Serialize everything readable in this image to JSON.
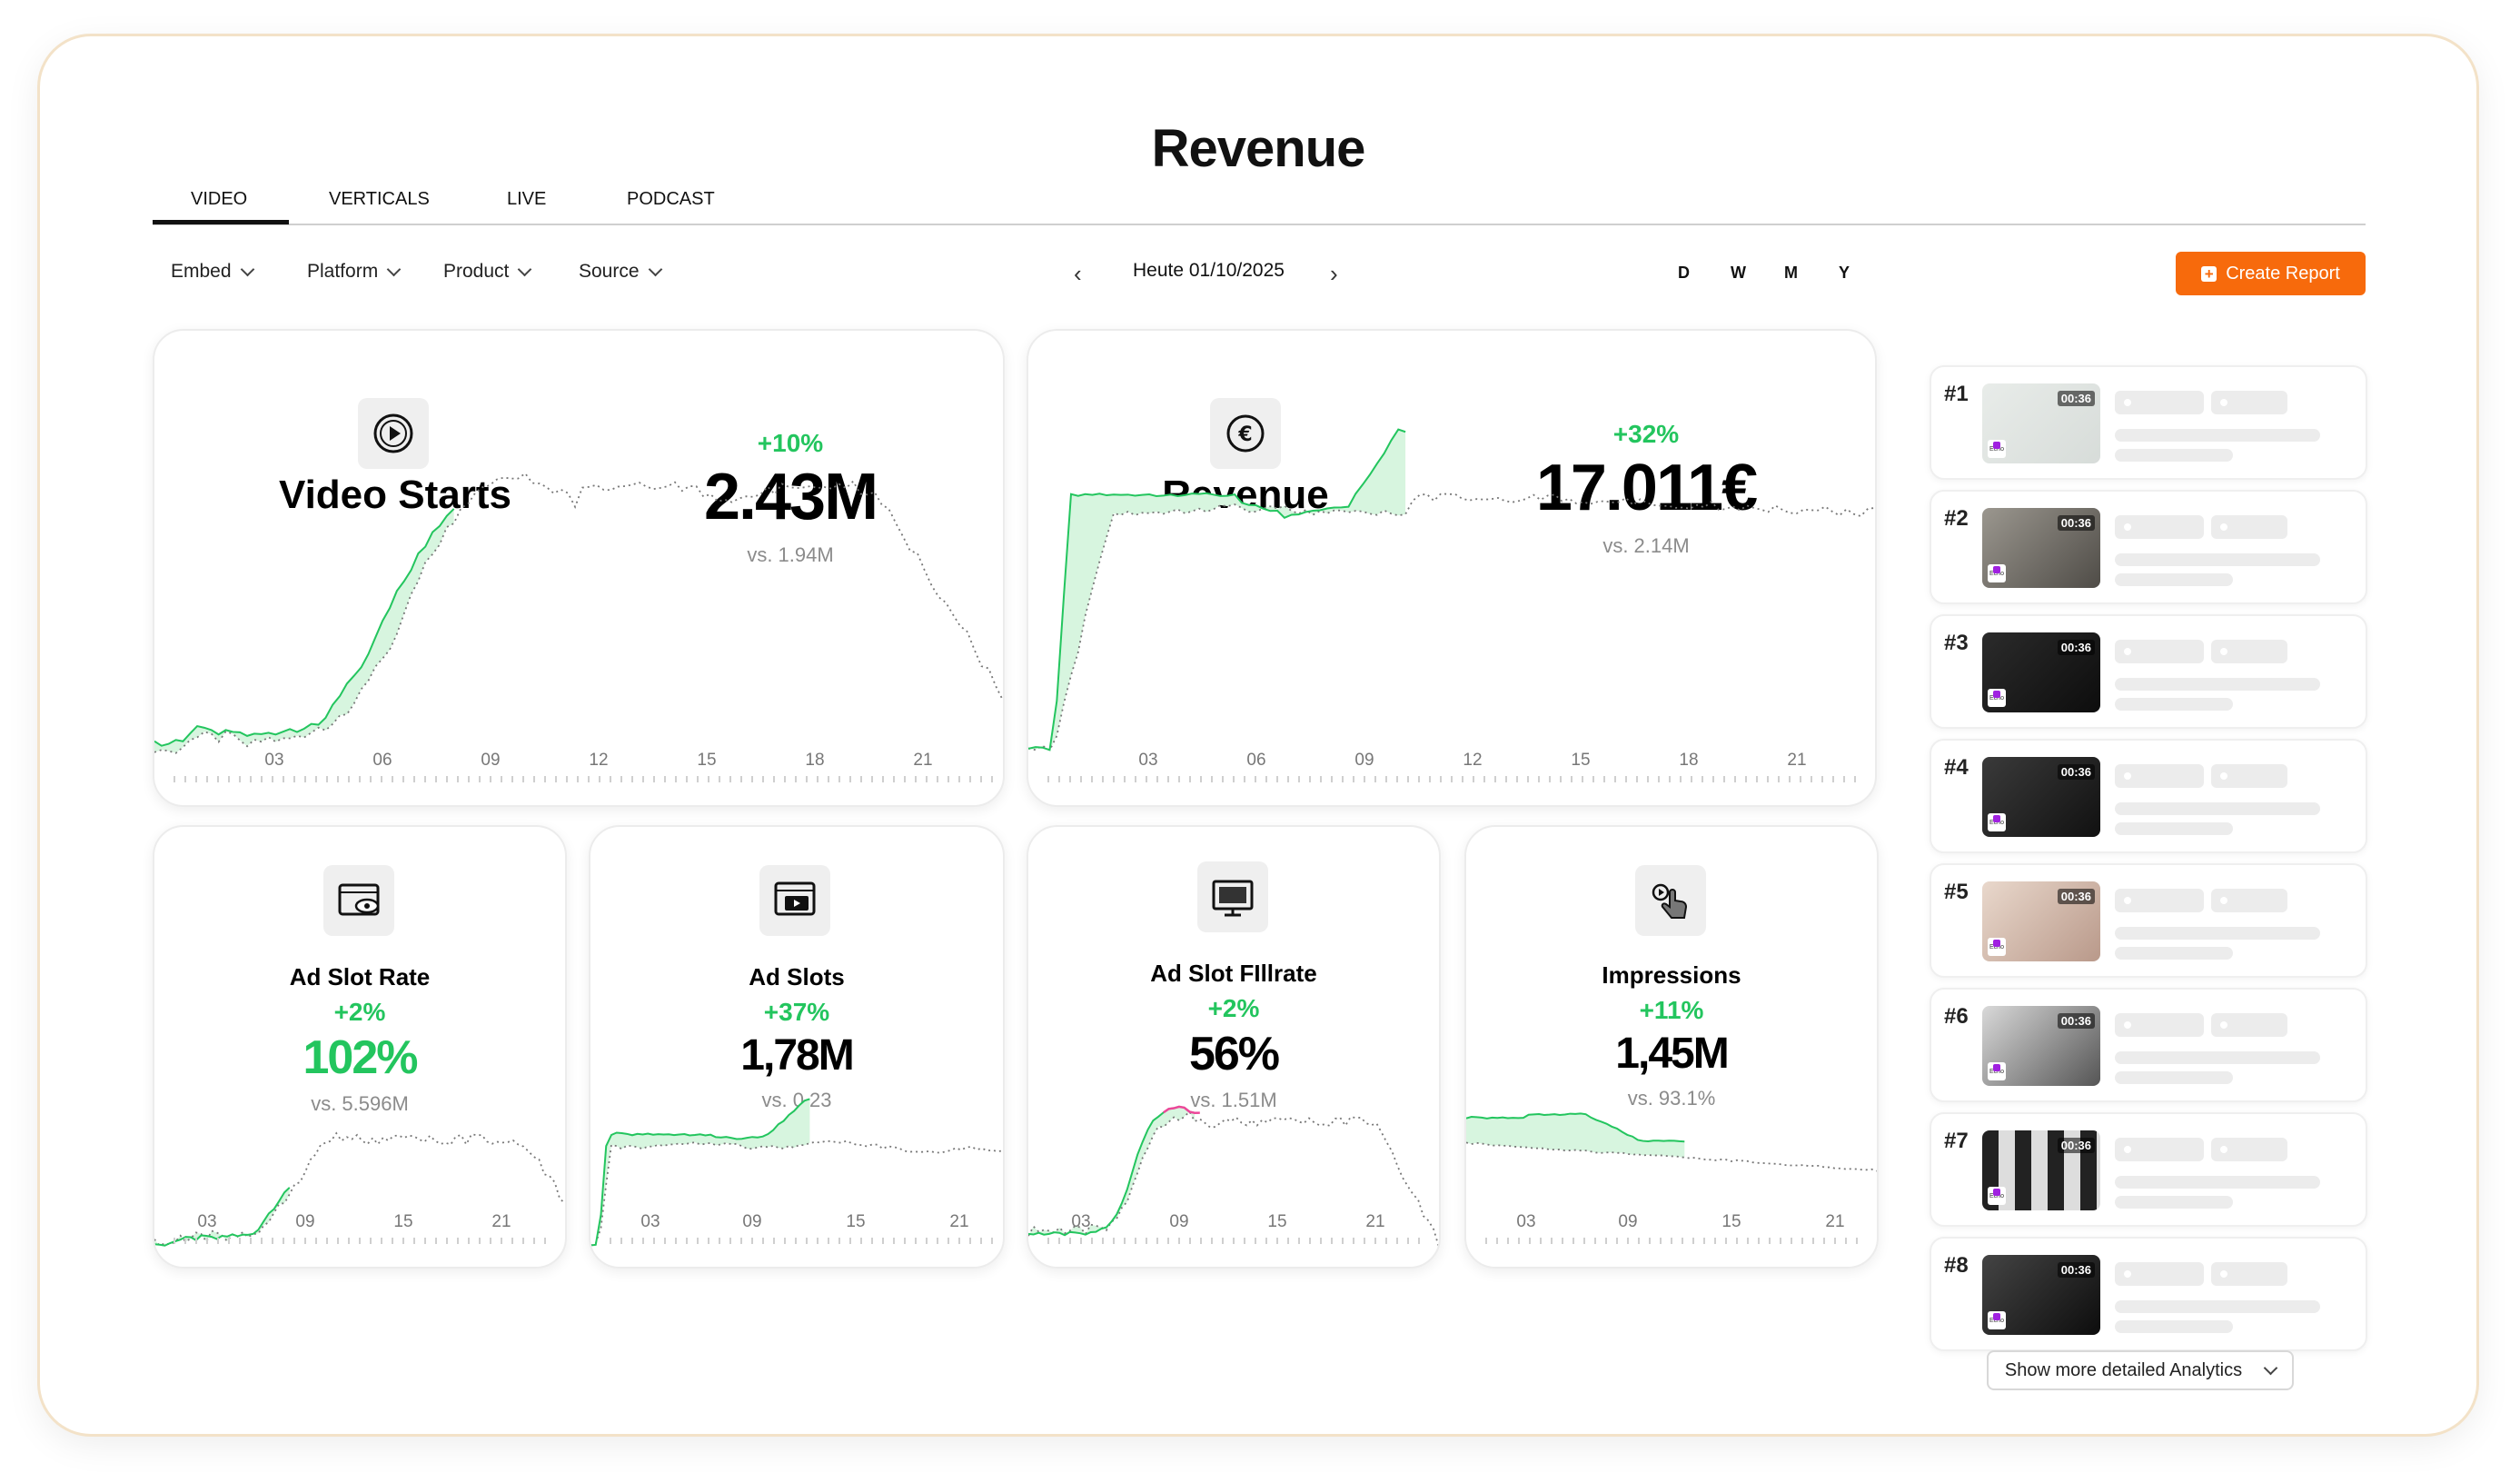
{
  "page": {
    "title": "Revenue"
  },
  "tabs": [
    {
      "label": "VIDEO",
      "active": true
    },
    {
      "label": "VERTICALS"
    },
    {
      "label": "LIVE"
    },
    {
      "label": "PODCAST"
    }
  ],
  "filters": [
    {
      "label": "Embed"
    },
    {
      "label": "Platform"
    },
    {
      "label": "Product"
    },
    {
      "label": "Source"
    }
  ],
  "date_nav": {
    "label": "Heute 01/10/2025",
    "prev_icon": "chevron-left-icon",
    "next_icon": "chevron-right-icon"
  },
  "ranges": [
    "D",
    "W",
    "M",
    "Y"
  ],
  "create_report": {
    "label": "Create Report",
    "icon": "plus-square-icon"
  },
  "colors": {
    "accent": "#f76a0c",
    "positive": "#23c55e",
    "negative": "#ec4899",
    "fill": "#d7f5df"
  },
  "metrics": {
    "video_starts": {
      "label": "Video Starts",
      "delta": "+10%",
      "value": "2.43M",
      "vs": "vs. 1.94M",
      "icon": "play-circle-icon",
      "ticks": [
        "03",
        "06",
        "09",
        "12",
        "15",
        "18",
        "21"
      ]
    },
    "revenue": {
      "label": "Revenue",
      "delta": "+32%",
      "value": "17.011€",
      "vs": "vs. 2.14M",
      "icon": "euro-icon",
      "ticks": [
        "03",
        "06",
        "09",
        "12",
        "15",
        "18",
        "21"
      ]
    },
    "ad_slot_rate": {
      "label": "Ad Slot Rate",
      "delta": "+2%",
      "value": "102%",
      "vs": "vs. 5.596M",
      "icon": "browser-eye-icon",
      "ticks": [
        "03",
        "09",
        "15",
        "21"
      ]
    },
    "ad_slots": {
      "label": "Ad Slots",
      "delta": "+37%",
      "value": "1,78M",
      "vs": "vs. 0.23",
      "icon": "browser-video-icon",
      "ticks": [
        "03",
        "09",
        "15",
        "21"
      ]
    },
    "ad_slot_fillrate": {
      "label": "Ad Slot FIllrate",
      "delta": "+2%",
      "value": "56%",
      "vs": "vs. 1.51M",
      "icon": "monitor-icon",
      "ticks": [
        "03",
        "09",
        "15",
        "21"
      ]
    },
    "impressions": {
      "label": "Impressions",
      "delta": "+11%",
      "value": "1,45M",
      "vs": "vs. 93.1%",
      "icon": "hand-pointer-icon",
      "ticks": [
        "03",
        "09",
        "15",
        "21"
      ]
    }
  },
  "top_videos": [
    {
      "rank": "#1",
      "duration": "00:36",
      "brand": "Echo"
    },
    {
      "rank": "#2",
      "duration": "00:36",
      "brand": "Echo"
    },
    {
      "rank": "#3",
      "duration": "00:36",
      "brand": "Echo"
    },
    {
      "rank": "#4",
      "duration": "00:36",
      "brand": "Echo"
    },
    {
      "rank": "#5",
      "duration": "00:36",
      "brand": "Echo"
    },
    {
      "rank": "#6",
      "duration": "00:36",
      "brand": "Echo"
    },
    {
      "rank": "#7",
      "duration": "00:36",
      "brand": "Echo"
    },
    {
      "rank": "#8",
      "duration": "00:36",
      "brand": "Echo"
    }
  ],
  "show_more": {
    "label": "Show more detailed Analytics",
    "icon": "chevron-down-icon"
  }
}
